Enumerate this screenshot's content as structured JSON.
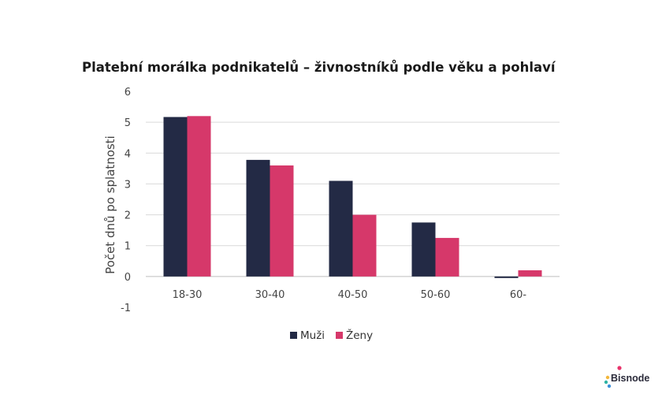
{
  "chart_data": {
    "type": "bar",
    "title": "Platební morálka podnikatelů – živnostníků podle věku a pohlaví",
    "xlabel": "",
    "ylabel": "Počet dnů po splatnosti",
    "categories": [
      "18-30",
      "30-40",
      "40-50",
      "50-60",
      "60-"
    ],
    "series": [
      {
        "name": "Muži",
        "color": "#232a45",
        "values": [
          5.17,
          3.78,
          3.1,
          1.75,
          -0.05
        ]
      },
      {
        "name": "Ženy",
        "color": "#d6386a",
        "values": [
          5.2,
          3.6,
          2.0,
          1.25,
          0.2
        ]
      }
    ],
    "ylim": [
      -1,
      6
    ],
    "yticks": [
      -1,
      0,
      1,
      2,
      3,
      4,
      5,
      6
    ],
    "grid": true,
    "legend": "bottom-center"
  },
  "logo": {
    "text": "Bisnode",
    "dot_colors": [
      "#e8336b",
      "#f3b73b",
      "#2fb3a4",
      "#3b8fd9"
    ]
  }
}
